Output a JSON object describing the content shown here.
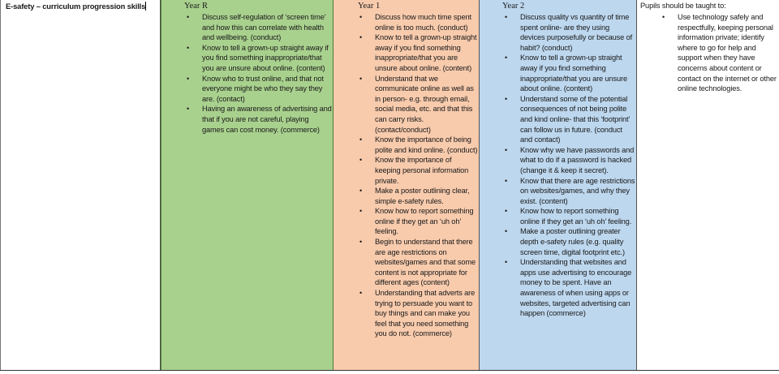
{
  "title": "E-safety – curriculum progression skills",
  "columns": [
    {
      "heading": "Year R",
      "color": "#a9d18e",
      "items": [
        "Discuss self-regulation of ‘screen time’ and how this can correlate with health and wellbeing. (conduct)",
        "Know to tell a grown-up straight away if you find something inappropriate/that you are unsure about online. (content)",
        "Know who to trust online, and that not everyone might be who they say they are. (contact)",
        "Having an awareness of advertising and that if you are not careful, playing games can cost money. (commerce)"
      ]
    },
    {
      "heading": "Year 1",
      "color": "#f8cbad",
      "items": [
        "Discuss how much time spent online is too much. (conduct)",
        "Know to tell a grown-up straight away if you find something inappropriate/that you are unsure about online. (content)",
        "Understand that we communicate online as well as in person- e.g. through email, social media, etc. and that this can carry risks. (contact/conduct)",
        "Know the importance of being polite and kind online. (conduct)",
        "Know the importance of keeping personal information private.",
        "Make a poster outlining clear, simple e-safety rules.",
        "Know how to report something online if they get an ‘uh oh’ feeling.",
        "Begin to understand that there are age restrictions on websites/games and that some content is not appropriate for different ages (content)",
        "Understanding that adverts are trying to persuade you want to buy things and can make you feel that you need something you do not. (commerce)"
      ]
    },
    {
      "heading": "Year 2",
      "color": "#bdd7ee",
      "items": [
        "Discuss quality vs quantity of time spent online- are they using devices purposefully or because of habit? (conduct)",
        "Know to tell a grown-up straight away if you find something inappropriate/that you are unsure about online. (content)",
        "Understand some of the potential consequences of not being polite and kind online- that this ‘footprint’ can follow us in future. (conduct and contact)",
        "Know why we have passwords and what to do if a password is hacked (change it & keep it secret).",
        "Know that there are age restrictions on websites/games, and why they exist. (content)",
        "Know how to report something online if they get an ‘uh oh’ feeling.",
        "Make a poster outlining greater depth e-safety rules (e.g. quality screen time, digital footprint etc.)",
        "Understanding that websites and apps use advertising to encourage money to be spent. Have an awareness of when using apps or websites, targeted advertising can happen (commerce)"
      ]
    }
  ],
  "national_curriculum": {
    "intro": "Pupils should be taught to:",
    "items": [
      "Use technology safely and respectfully, keeping personal information private; identify where to go for help and support when they have concerns about content or contact on the internet or other online technologies."
    ]
  }
}
